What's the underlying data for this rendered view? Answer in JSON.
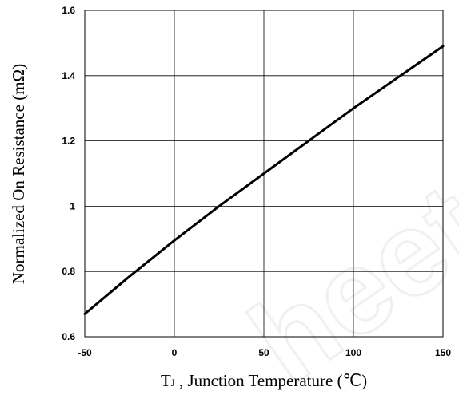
{
  "chart_data": {
    "type": "line",
    "xlabel_main": "T",
    "xlabel_sub": "J",
    "xlabel_rest": " , Junction Temperature (℃)",
    "ylabel": "Normalized On Resistance (mΩ)",
    "xlim": [
      -50,
      150
    ],
    "ylim": [
      0.6,
      1.6
    ],
    "x_ticks": [
      "-50",
      "0",
      "50",
      "100",
      "150"
    ],
    "y_ticks": [
      "0.6",
      "0.8",
      "1",
      "1.2",
      "1.4",
      "1.6"
    ],
    "grid": true,
    "line_color": "#000000",
    "series": [
      {
        "x": [
          -50,
          -25,
          0,
          25,
          50,
          75,
          100,
          125,
          150
        ],
        "y": [
          0.67,
          0.785,
          0.895,
          1.0,
          1.1,
          1.2,
          1.3,
          1.395,
          1.49
        ]
      }
    ]
  },
  "watermark": "heet"
}
